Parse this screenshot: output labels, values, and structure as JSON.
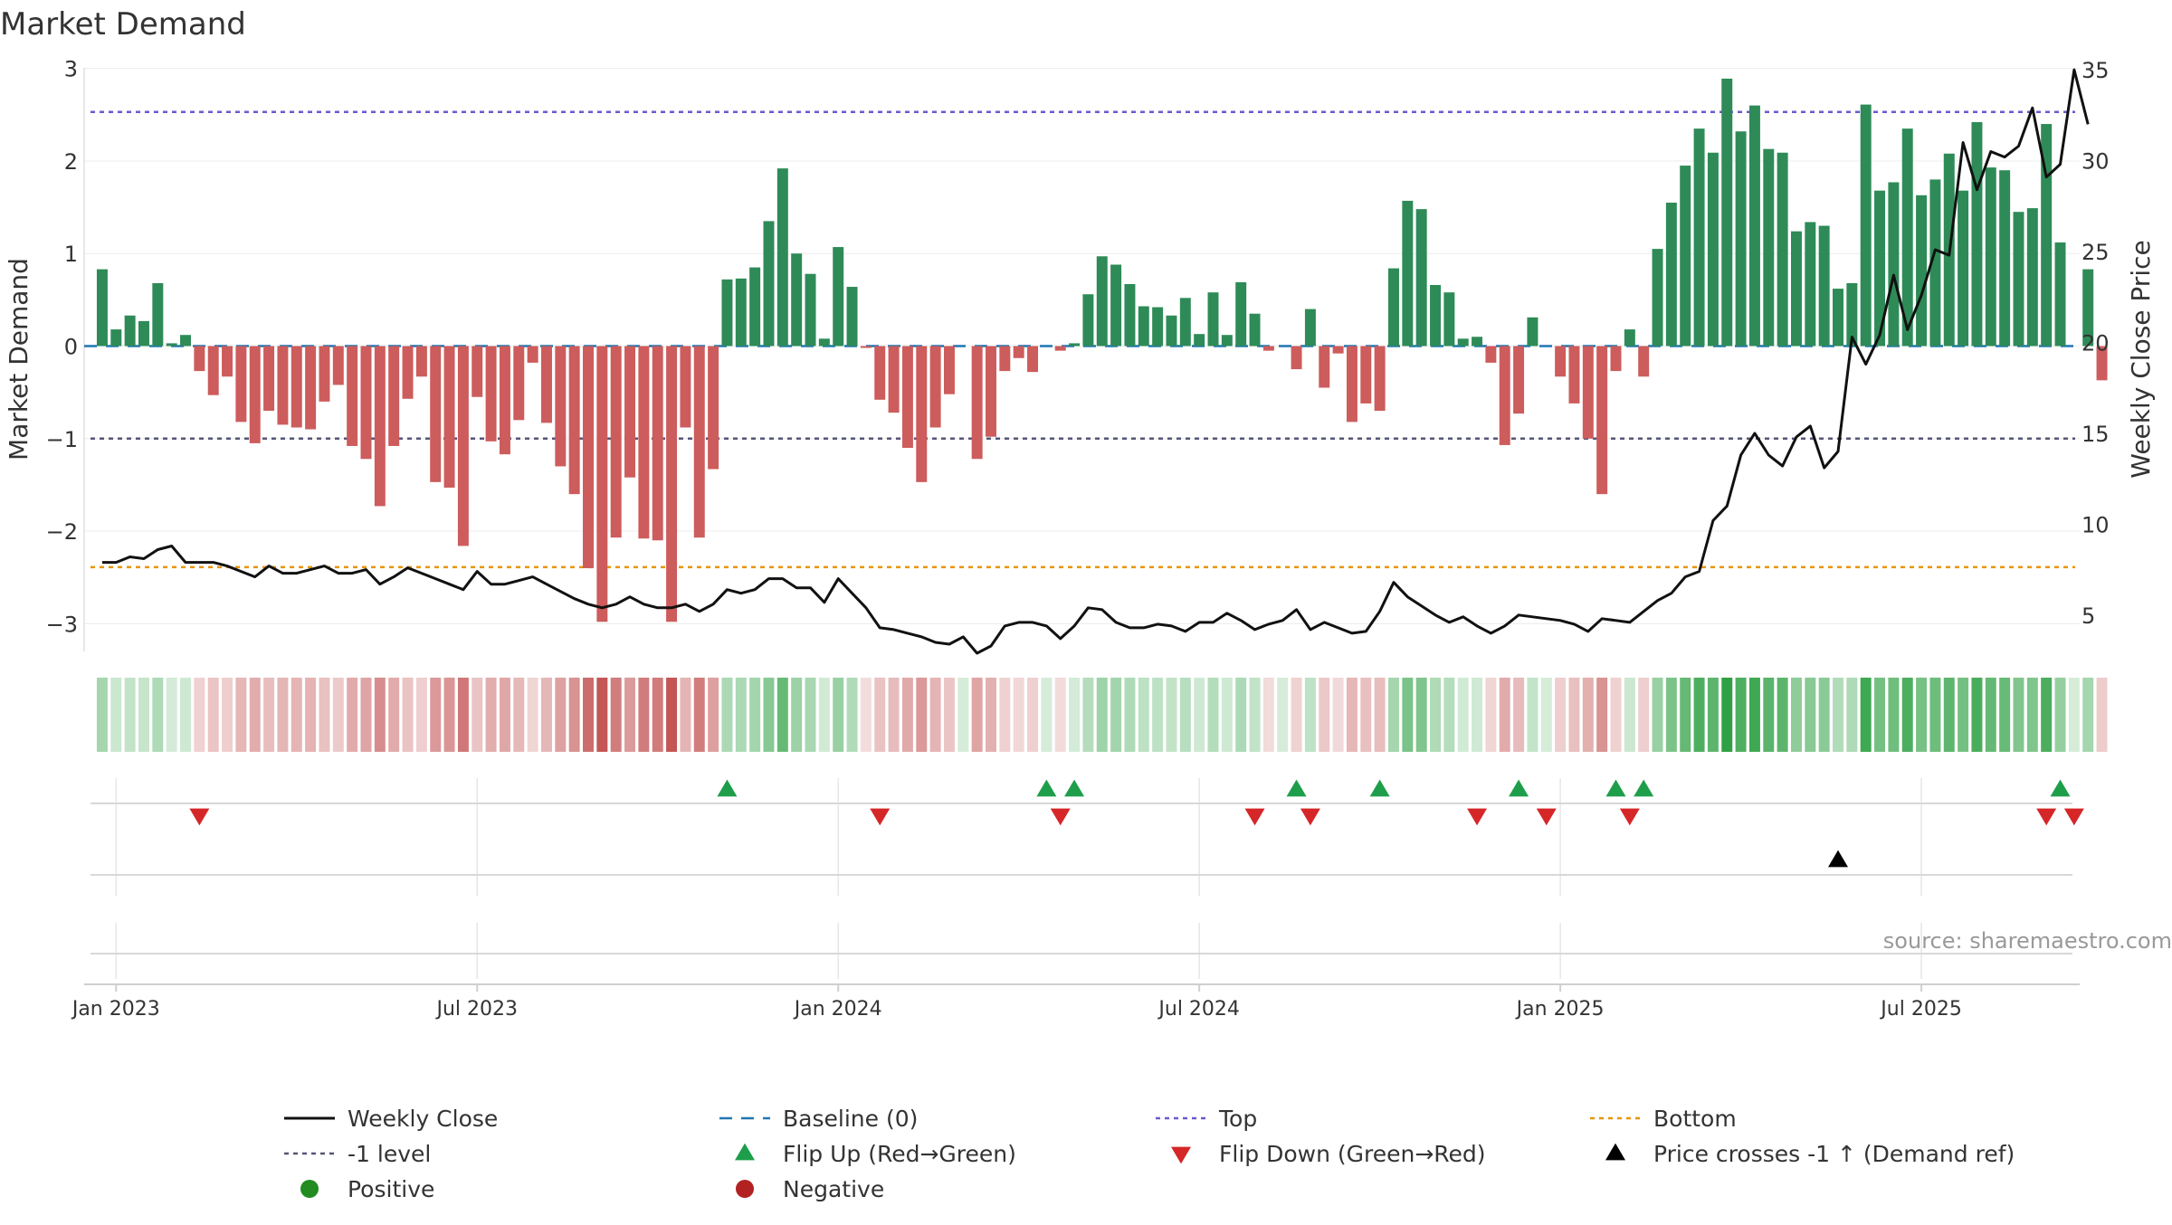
{
  "chart_data": {
    "type": "bar",
    "title": "Market Demand",
    "ylabel_left": "Market Demand",
    "ylabel_right": "Weekly Close Price",
    "ylim_left": [
      -3.3,
      3.3
    ],
    "ylim_right": [
      3,
      36.6
    ],
    "yticks_left": [
      3,
      2,
      1,
      0,
      -1,
      -2,
      -3
    ],
    "yticks_left_labels": [
      "3",
      "2",
      "1",
      "0",
      "−1",
      "−2",
      "−3"
    ],
    "yticks_right": [
      35,
      30,
      25,
      20,
      15,
      10,
      5
    ],
    "yticks_right_labels": [
      "35",
      "30",
      "25",
      "20",
      "15",
      "10",
      "5"
    ],
    "xticks": [
      {
        "week": 1,
        "label": "Jan 2023"
      },
      {
        "week": 27,
        "label": "Jul 2023"
      },
      {
        "week": 53,
        "label": "Jan 2024"
      },
      {
        "week": 79,
        "label": "Jul 2024"
      },
      {
        "week": 105,
        "label": "Jan 2025"
      },
      {
        "week": 131,
        "label": "Jul 2025"
      }
    ],
    "x_range": [
      -1.3,
      142.4
    ],
    "reference_lines": {
      "top": 2.53,
      "bottom": -2.39,
      "minus_one": -1,
      "baseline": 0
    },
    "demand": [
      0.83,
      0.18,
      0.33,
      0.27,
      0.68,
      0.03,
      0.12,
      -0.27,
      -0.53,
      -0.33,
      -0.82,
      -1.05,
      -0.7,
      -0.85,
      -0.88,
      -0.9,
      -0.6,
      -0.42,
      -1.08,
      -1.22,
      -1.73,
      -1.08,
      -0.57,
      -0.33,
      -1.47,
      -1.53,
      -2.16,
      -0.55,
      -1.03,
      -1.17,
      -0.8,
      -0.18,
      -0.83,
      -1.3,
      -1.6,
      -2.4,
      -2.98,
      -2.07,
      -1.42,
      -2.08,
      -2.1,
      -2.98,
      -0.88,
      -2.07,
      -1.33,
      0.72,
      0.73,
      0.85,
      1.35,
      1.92,
      1.0,
      0.78,
      0.08,
      1.07,
      0.64,
      -0.02,
      -0.58,
      -0.72,
      -1.1,
      -1.47,
      -0.88,
      -0.52,
      0,
      -1.22,
      -0.98,
      -0.27,
      -0.13,
      -0.28,
      0,
      -0.05,
      0.03,
      0.56,
      0.97,
      0.88,
      0.67,
      0.43,
      0.42,
      0.33,
      0.52,
      0.13,
      0.58,
      0.12,
      0.69,
      0.35,
      -0.05,
      0,
      -0.25,
      0.4,
      -0.45,
      -0.08,
      -0.82,
      -0.62,
      -0.7,
      0.84,
      1.57,
      1.48,
      0.66,
      0.58,
      0.08,
      0.1,
      -0.18,
      -1.07,
      -0.73,
      0.31,
      0,
      -0.33,
      -0.62,
      -1.0,
      -1.6,
      -0.27,
      0.18,
      -0.33,
      1.05,
      1.55,
      1.95,
      2.35,
      2.09,
      2.89,
      2.32,
      2.6,
      2.13,
      2.09,
      1.24,
      1.34,
      1.3,
      0.62,
      0.68,
      2.61,
      1.68,
      1.77,
      2.35,
      1.63,
      1.8,
      2.08,
      1.68,
      2.42,
      1.93,
      1.9,
      1.45,
      1.49,
      2.4,
      1.12,
      0,
      0.83,
      -0.37
    ],
    "weekly_close": [
      7.9,
      7.9,
      8.2,
      8.1,
      8.6,
      8.8,
      7.9,
      7.9,
      7.9,
      7.7,
      7.4,
      7.1,
      7.7,
      7.3,
      7.3,
      7.5,
      7.7,
      7.3,
      7.3,
      7.5,
      6.7,
      7.1,
      7.6,
      7.3,
      7.0,
      6.7,
      6.4,
      7.4,
      6.7,
      6.7,
      6.9,
      7.1,
      6.7,
      6.3,
      5.9,
      5.6,
      5.4,
      5.6,
      6.0,
      5.6,
      5.4,
      5.4,
      5.6,
      5.2,
      5.6,
      6.4,
      6.2,
      6.4,
      7.0,
      7.0,
      6.5,
      6.5,
      5.7,
      7.0,
      6.2,
      5.4,
      4.3,
      4.2,
      4.0,
      3.8,
      3.5,
      3.4,
      3.8,
      2.9,
      3.3,
      4.4,
      4.6,
      4.6,
      4.4,
      3.7,
      4.4,
      5.4,
      5.3,
      4.6,
      4.3,
      4.3,
      4.5,
      4.4,
      4.1,
      4.6,
      4.6,
      5.1,
      4.7,
      4.2,
      4.5,
      4.7,
      5.3,
      4.2,
      4.6,
      4.3,
      4.0,
      4.1,
      5.2,
      6.8,
      6.0,
      5.5,
      5.0,
      4.6,
      4.9,
      4.4,
      4.0,
      4.4,
      5.0,
      4.9,
      4.8,
      4.7,
      4.5,
      4.1,
      4.8,
      4.7,
      4.6,
      5.2,
      5.8,
      6.2,
      7.1,
      7.4,
      10.2,
      11.0,
      13.8,
      15.0,
      13.8,
      13.2,
      14.8,
      15.4,
      13.1,
      14.0,
      20.3,
      18.8,
      20.4,
      23.7,
      20.7,
      22.6,
      25.1,
      24.8,
      31.0,
      28.4,
      30.5,
      30.2,
      30.8,
      32.9,
      29.1,
      29.8,
      35.0,
      32.0
    ],
    "flip_up_weeks": [
      45,
      68,
      70,
      86,
      92,
      102,
      109,
      111,
      141
    ],
    "flip_down_weeks": [
      7,
      56,
      69,
      83,
      87,
      99,
      104,
      110,
      140,
      142
    ],
    "price_cross_weeks": [
      125
    ],
    "source": "source: sharemaestro.com",
    "legend": [
      {
        "label": "Weekly Close",
        "key": "close"
      },
      {
        "label": "Baseline (0)",
        "key": "baseline"
      },
      {
        "label": "Top",
        "key": "top"
      },
      {
        "label": "Bottom",
        "key": "bottom"
      },
      {
        "label": "-1 level",
        "key": "minus1"
      },
      {
        "label": "Flip Up (Red→Green)",
        "key": "flipup"
      },
      {
        "label": "Flip Down (Green→Red)",
        "key": "flipdown"
      },
      {
        "label": "Price crosses -1 ↑ (Demand ref)",
        "key": "pricecross"
      },
      {
        "label": "Positive",
        "key": "positive"
      },
      {
        "label": "Negative",
        "key": "negative"
      }
    ],
    "colors": {
      "positive_bar": "#2e8b57",
      "negative_bar": "#cd5c5c",
      "close_line": "#111111",
      "baseline": "#1f77b4",
      "top": "#6a5acd",
      "bottom": "#e69500",
      "minus1": "#555577",
      "flip_up": "#1e9e4a",
      "flip_down": "#d62728",
      "price_cross": "#000000",
      "positive_dot": "#228b22",
      "negative_dot": "#b22222"
    }
  }
}
